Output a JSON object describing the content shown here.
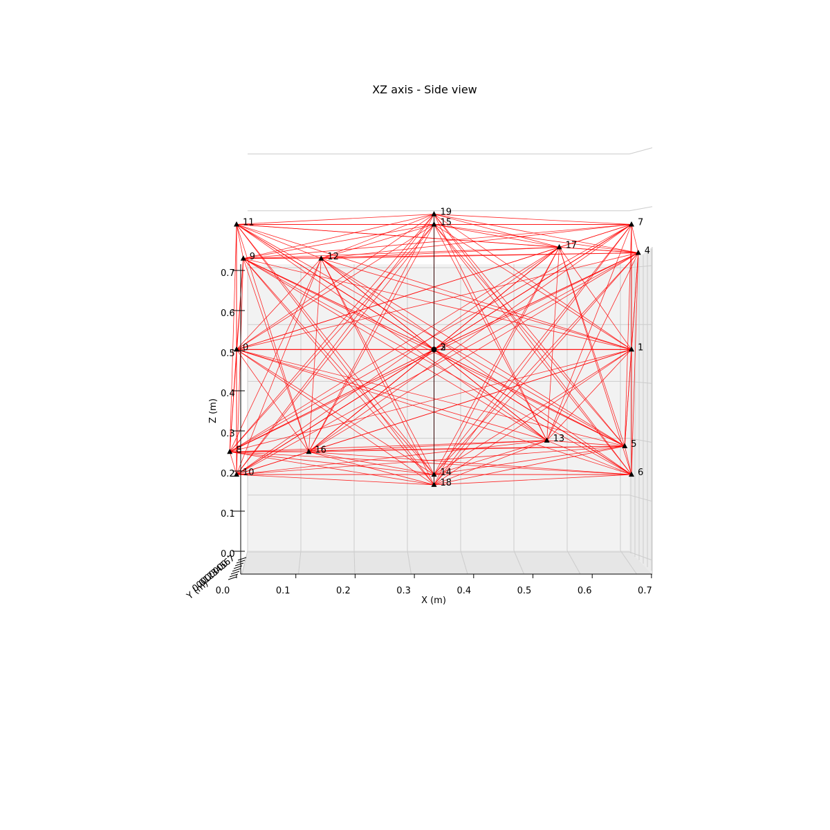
{
  "chart_data": {
    "type": "scatter",
    "title": "XZ axis - Side view",
    "xlabel": "X (m)",
    "ylabel": "Z (m)",
    "zlabel": "Y (m)",
    "xlim": [
      0.0,
      0.7
    ],
    "zlim": [
      0.0,
      0.7
    ],
    "x_ticks": [
      "0.0",
      "0.1",
      "0.2",
      "0.3",
      "0.4",
      "0.5",
      "0.6",
      "0.7"
    ],
    "z_ticks": [
      "0.0",
      "0.1",
      "0.2",
      "0.3",
      "0.4",
      "0.5",
      "0.6",
      "0.7"
    ],
    "y_ticks": [
      "0.0",
      "0.1",
      "0.2",
      "0.3",
      "0.4",
      "0.5",
      "0.6",
      "0.7"
    ],
    "grid": true,
    "colors": {
      "edges": "#ff0000",
      "nodes": "#000000",
      "pane": "#f2f2f2",
      "grid": "#cccccc"
    },
    "nodes": [
      {
        "id": "0",
        "x": 0.0,
        "z": 0.35,
        "marker": "triangle"
      },
      {
        "id": "1",
        "x": 0.7,
        "z": 0.35,
        "marker": "triangle"
      },
      {
        "id": "2",
        "x": 0.35,
        "z": 0.35,
        "marker": "triangle"
      },
      {
        "id": "3",
        "x": 0.35,
        "z": 0.35,
        "marker": "circle"
      },
      {
        "id": "4",
        "x": 0.712,
        "z": 0.52,
        "marker": "triangle"
      },
      {
        "id": "5",
        "x": 0.688,
        "z": 0.18,
        "marker": "triangle"
      },
      {
        "id": "6",
        "x": 0.7,
        "z": 0.13,
        "marker": "triangle"
      },
      {
        "id": "7",
        "x": 0.7,
        "z": 0.57,
        "marker": "triangle"
      },
      {
        "id": "8",
        "x": -0.012,
        "z": 0.17,
        "marker": "triangle"
      },
      {
        "id": "9",
        "x": 0.012,
        "z": 0.51,
        "marker": "triangle"
      },
      {
        "id": "10",
        "x": 0.0,
        "z": 0.13,
        "marker": "triangle"
      },
      {
        "id": "11",
        "x": 0.0,
        "z": 0.57,
        "marker": "triangle"
      },
      {
        "id": "12",
        "x": 0.15,
        "z": 0.51,
        "marker": "triangle"
      },
      {
        "id": "13",
        "x": 0.55,
        "z": 0.19,
        "marker": "triangle"
      },
      {
        "id": "14",
        "x": 0.35,
        "z": 0.13,
        "marker": "triangle"
      },
      {
        "id": "15",
        "x": 0.35,
        "z": 0.57,
        "marker": "triangle"
      },
      {
        "id": "16",
        "x": 0.128,
        "z": 0.17,
        "marker": "triangle"
      },
      {
        "id": "17",
        "x": 0.572,
        "z": 0.53,
        "marker": "triangle"
      },
      {
        "id": "18",
        "x": 0.35,
        "z": 0.112,
        "marker": "triangle"
      },
      {
        "id": "19",
        "x": 0.35,
        "z": 0.588,
        "marker": "triangle"
      }
    ]
  }
}
